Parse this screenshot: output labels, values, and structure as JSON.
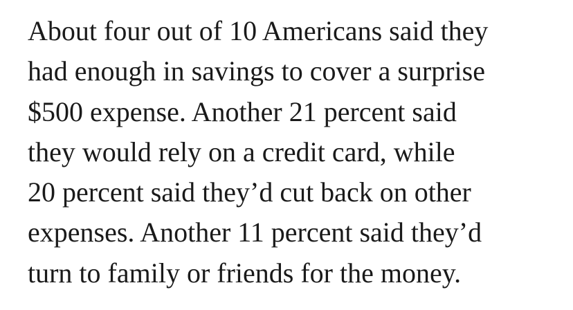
{
  "paragraph": {
    "lines": [
      "About four out of 10 Americans said they",
      "had enough in savings to cover a surprise",
      "$500 expense. Another 21 percent said",
      "they would rely on a credit card, while",
      "20 percent said they’d cut back on other",
      "expenses. Another 11 percent said they’d",
      "turn to family or friends for the money."
    ]
  }
}
